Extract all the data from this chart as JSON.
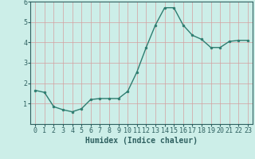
{
  "x": [
    0,
    1,
    2,
    3,
    4,
    5,
    6,
    7,
    8,
    9,
    10,
    11,
    12,
    13,
    14,
    15,
    16,
    17,
    18,
    19,
    20,
    21,
    22,
    23
  ],
  "y": [
    1.65,
    1.55,
    0.85,
    0.7,
    0.6,
    0.75,
    1.2,
    1.25,
    1.25,
    1.25,
    1.6,
    2.55,
    3.75,
    4.85,
    5.7,
    5.7,
    4.85,
    4.35,
    4.15,
    3.75,
    3.75,
    4.05,
    4.1,
    4.1
  ],
  "line_color": "#2e7d70",
  "marker": "o",
  "marker_size": 2.0,
  "line_width": 1.0,
  "bg_color": "#cceee8",
  "grid_color": "#d4a0a0",
  "xlabel": "Humidex (Indice chaleur)",
  "xlabel_fontsize": 7,
  "tick_fontsize": 6,
  "ylim": [
    0,
    6
  ],
  "xlim": [
    -0.5,
    23.5
  ],
  "yticks": [
    1,
    2,
    3,
    4,
    5,
    6
  ],
  "xticks": [
    0,
    1,
    2,
    3,
    4,
    5,
    6,
    7,
    8,
    9,
    10,
    11,
    12,
    13,
    14,
    15,
    16,
    17,
    18,
    19,
    20,
    21,
    22,
    23
  ],
  "tick_color": "#2e6060",
  "axis_color": "#2e6060",
  "spine_color": "#2e6060"
}
